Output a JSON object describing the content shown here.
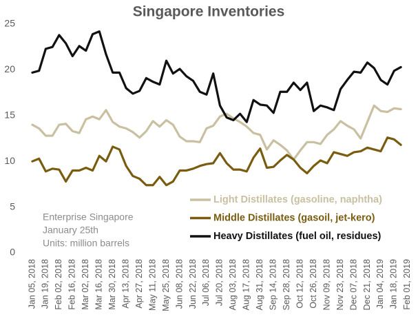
{
  "chart_data": {
    "type": "line",
    "title": "Singapore Inventories",
    "annotations": [
      "Enterprise Singapore",
      "January 25th",
      "Units: million barrels"
    ],
    "categories": [
      "Jan 05, 2018",
      null,
      "Jan 19, 2018",
      null,
      "Feb 02, 2018",
      null,
      "Feb 16, 2018",
      null,
      "Mar 02, 2018",
      null,
      "Mar 16, 2018",
      null,
      "Mar 30, 2018",
      null,
      "Apr 13, 2018",
      null,
      "Apr 27, 2018",
      null,
      "May 11, 2018",
      null,
      "May 25, 2018",
      null,
      "Jun 08, 2018",
      null,
      "Jun 22, 2018",
      null,
      "Jul 06, 2018",
      null,
      "Jul 20, 2018",
      null,
      "Aug 03, 2018",
      null,
      "Aug 17, 2018",
      null,
      "Aug 31, 2018",
      null,
      "Sep 14, 2018",
      null,
      "Sep 28, 2018",
      null,
      "Oct 12, 2018",
      null,
      "Oct 26, 2018",
      null,
      "Nov 09, 2018",
      null,
      "Nov 23, 2018",
      null,
      "Dec 07, 2018",
      null,
      "Dec 21, 2018",
      null,
      "Jan 04, 2019",
      null,
      "Jan 18, 2019",
      null,
      "Feb 01, 2019"
    ],
    "series": [
      {
        "name": "Light Distillates (gasoline, naphtha)",
        "color": "#c9c0a2",
        "values": [
          14.0,
          13.6,
          12.8,
          12.8,
          14.0,
          14.1,
          13.3,
          13.1,
          14.6,
          14.9,
          14.6,
          15.6,
          14.3,
          13.8,
          13.6,
          13.2,
          12.6,
          13.3,
          14.4,
          13.8,
          14.5,
          14.0,
          12.7,
          12.2,
          12.2,
          12.1,
          13.6,
          13.9,
          14.9,
          15.2,
          14.7,
          14.3,
          13.8,
          13.1,
          12.9,
          11.3,
          12.3,
          11.8,
          11.2,
          10.2,
          11.2,
          12.1,
          12.1,
          11.9,
          12.9,
          13.5,
          14.4,
          13.9,
          13.5,
          12.5,
          14.3,
          16.1,
          15.5,
          15.4,
          15.8,
          15.7,
          null
        ]
      },
      {
        "name": "Middle Distillates (gasoil, jet-kero)",
        "color": "#7a5c10",
        "values": [
          10.0,
          10.3,
          8.9,
          9.2,
          9.1,
          7.8,
          9.0,
          9.0,
          9.3,
          9.0,
          10.6,
          10.0,
          11.6,
          11.3,
          9.5,
          8.4,
          8.1,
          7.4,
          7.4,
          8.3,
          7.4,
          7.8,
          9.0,
          9.0,
          9.2,
          9.5,
          9.7,
          9.8,
          10.9,
          9.8,
          9.1,
          9.1,
          8.9,
          10.4,
          11.4,
          9.3,
          9.4,
          10.1,
          10.7,
          10.2,
          9.3,
          8.7,
          9.5,
          10.1,
          9.8,
          11.0,
          10.8,
          10.6,
          11.0,
          11.1,
          11.5,
          11.3,
          11.1,
          12.6,
          12.4,
          11.8,
          null
        ]
      },
      {
        "name": "Heavy Distillates (fuel oil, residues)",
        "color": "#111111",
        "values": [
          19.7,
          19.9,
          22.3,
          22.5,
          23.8,
          22.9,
          21.5,
          22.6,
          22.1,
          23.9,
          24.2,
          21.7,
          19.7,
          19.7,
          18.0,
          17.4,
          17.7,
          19.1,
          18.7,
          18.4,
          21.0,
          19.6,
          20.1,
          19.3,
          18.8,
          17.6,
          17.3,
          19.6,
          16.1,
          14.8,
          14.5,
          15.2,
          14.3,
          16.7,
          16.2,
          16.1,
          15.3,
          17.6,
          17.6,
          18.6,
          17.8,
          18.6,
          15.5,
          16.1,
          15.9,
          15.6,
          17.9,
          18.9,
          19.8,
          19.7,
          20.8,
          20.2,
          18.9,
          18.4,
          19.9,
          20.3,
          null
        ]
      }
    ],
    "ylim": [
      0,
      25
    ],
    "yticks": [
      0,
      5,
      10,
      15,
      20,
      25
    ],
    "grid": false,
    "legend": "lower right"
  }
}
